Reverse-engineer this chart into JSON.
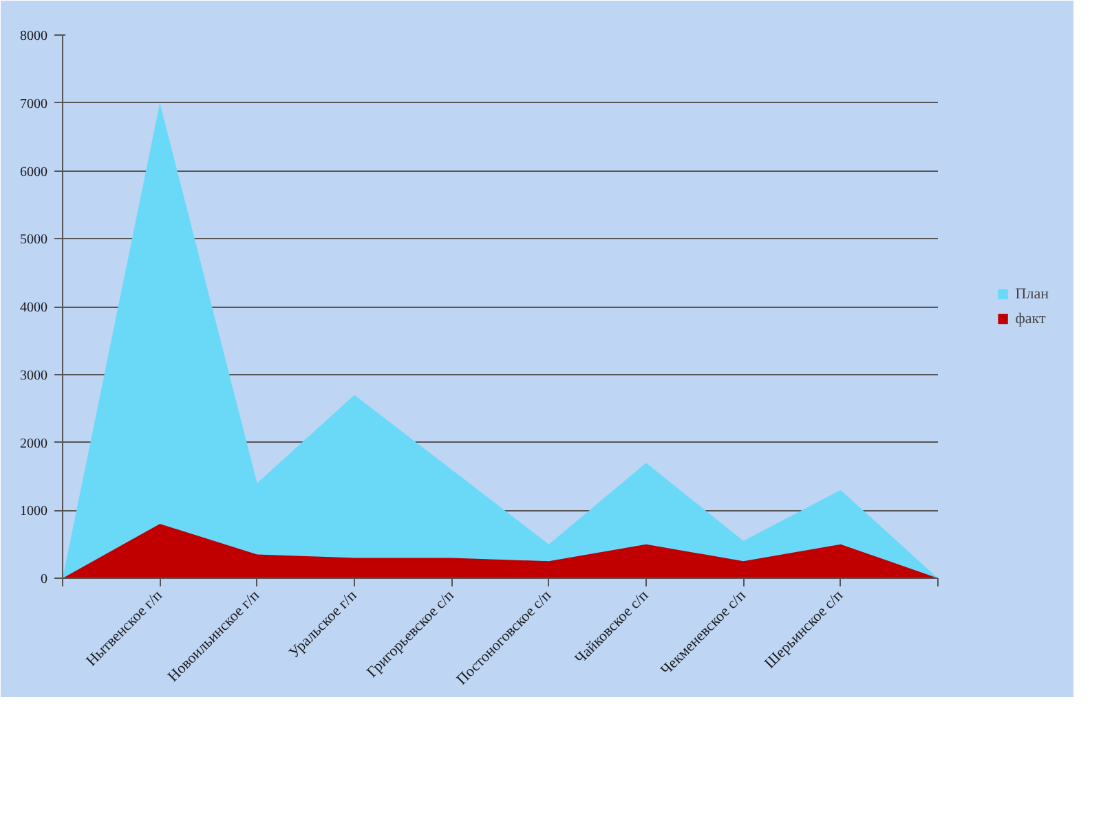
{
  "chart_data": {
    "type": "area",
    "categories": [
      null,
      "Нытвенское г/п",
      "Новоильинское г/п",
      "Уральское г/п",
      "Григорьевское с/п",
      "Постоноговское с/п",
      "Чайковское с/п",
      "Чекменевское с/п",
      "Шерьинское с/п",
      null
    ],
    "series": [
      {
        "name": "План",
        "color": "#6ad9f8",
        "values": [
          0,
          7000,
          1400,
          2700,
          1600,
          500,
          1700,
          550,
          1300,
          0
        ]
      },
      {
        "name": "факт",
        "color": "#c00000",
        "values": [
          0,
          800,
          350,
          300,
          300,
          250,
          500,
          250,
          500,
          0
        ]
      }
    ],
    "ylim": [
      0,
      8000
    ],
    "yticks": [
      0,
      1000,
      2000,
      3000,
      4000,
      5000,
      6000,
      7000,
      8000
    ],
    "grid": "y",
    "legend": "right"
  }
}
